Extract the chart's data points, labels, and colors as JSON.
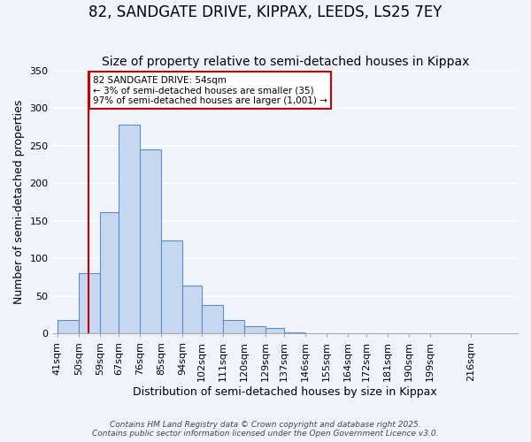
{
  "title": "82, SANDGATE DRIVE, KIPPAX, LEEDS, LS25 7EY",
  "subtitle": "Size of property relative to semi-detached houses in Kippax",
  "xlabel": "Distribution of semi-detached houses by size in Kippax",
  "ylabel": "Number of semi-detached properties",
  "bar_heights": [
    18,
    80,
    162,
    278,
    245,
    124,
    64,
    38,
    18,
    10,
    8,
    2,
    1,
    0,
    0,
    0,
    0,
    0,
    0
  ],
  "bin_edges": [
    41,
    50,
    59,
    67,
    76,
    85,
    94,
    102,
    111,
    120,
    129,
    137,
    146,
    155,
    164,
    172,
    181,
    190,
    199,
    216
  ],
  "tick_labels": [
    "41sqm",
    "50sqm",
    "59sqm",
    "67sqm",
    "76sqm",
    "85sqm",
    "94sqm",
    "102sqm",
    "111sqm",
    "120sqm",
    "129sqm",
    "137sqm",
    "146sqm",
    "155sqm",
    "164sqm",
    "172sqm",
    "181sqm",
    "190sqm",
    "199sqm",
    "216sqm"
  ],
  "bar_color": "#c5d8f0",
  "bar_edge_color": "#5b8fcc",
  "red_line_x": 54,
  "annotation_text": "82 SANDGATE DRIVE: 54sqm\n← 3% of semi-detached houses are smaller (35)\n97% of semi-detached houses are larger (1,001) →",
  "annotation_box_color": "#ffffff",
  "annotation_edge_color": "#cc0000",
  "footer_line1": "Contains HM Land Registry data © Crown copyright and database right 2025.",
  "footer_line2": "Contains public sector information licensed under the Open Government Licence v3.0.",
  "ylim": [
    0,
    350
  ],
  "background_color": "#f0f4fa",
  "grid_color": "#ffffff",
  "title_fontsize": 12,
  "subtitle_fontsize": 10,
  "axis_label_fontsize": 9,
  "tick_fontsize": 8
}
